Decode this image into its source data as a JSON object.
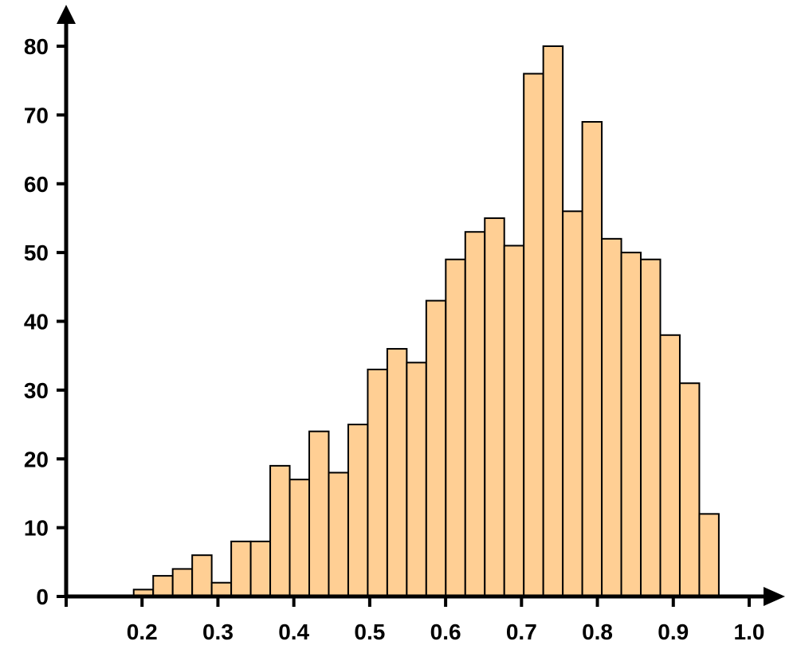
{
  "chart_data": {
    "type": "bar",
    "title": "",
    "xlabel": "",
    "ylabel": "",
    "bin_width": 0.0257,
    "bin_starts": [
      0.189,
      0.2147,
      0.2404,
      0.2661,
      0.2918,
      0.3175,
      0.3432,
      0.3689,
      0.3946,
      0.4203,
      0.446,
      0.4717,
      0.4974,
      0.5231,
      0.5488,
      0.5745,
      0.6002,
      0.6259,
      0.6516,
      0.6773,
      0.703,
      0.7287,
      0.7544,
      0.7801,
      0.8058,
      0.8315,
      0.8572,
      0.8829,
      0.9086,
      0.9343,
      0.96
    ],
    "values": [
      1,
      3,
      4,
      6,
      2,
      8,
      8,
      19,
      17,
      24,
      18,
      25,
      33,
      36,
      34,
      43,
      49,
      53,
      55,
      51,
      76,
      80,
      56,
      69,
      52,
      50,
      49,
      38,
      31,
      12
    ],
    "xlim": [
      0.1,
      1.0
    ],
    "ylim": [
      0,
      80
    ],
    "x_ticks": [
      0.1,
      0.2,
      0.3,
      0.4,
      0.5,
      0.6,
      0.7,
      0.8,
      0.9,
      1.0
    ],
    "x_tick_labels": [
      "",
      "0.2",
      "0.3",
      "0.4",
      "0.5",
      "0.6",
      "0.7",
      "0.8",
      "0.9",
      "1.0"
    ],
    "y_ticks": [
      0,
      10,
      20,
      30,
      40,
      50,
      60,
      70,
      80
    ],
    "y_tick_labels": [
      "0",
      "10",
      "20",
      "30",
      "40",
      "50",
      "60",
      "70",
      "80"
    ],
    "bar_color": "#FFCF94",
    "edge_color": "#000000",
    "grid": false,
    "legend": "none"
  }
}
